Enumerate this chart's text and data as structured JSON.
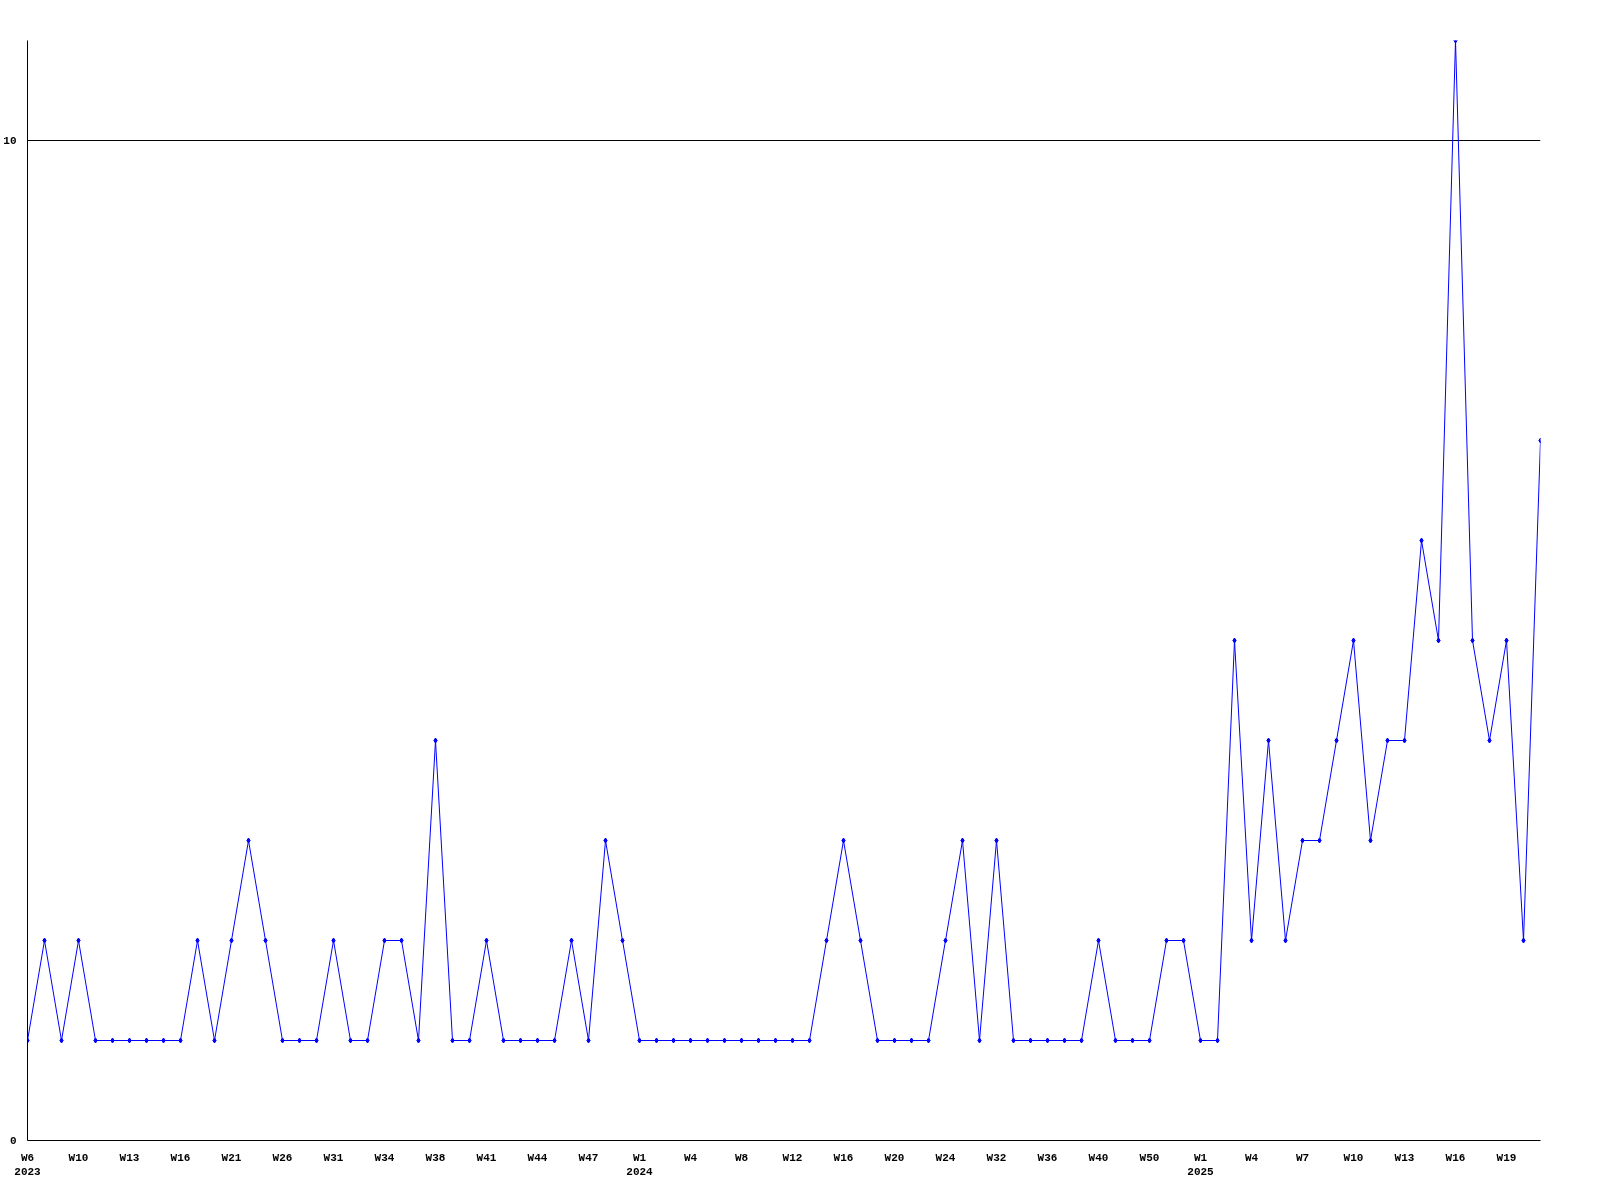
{
  "chart_data": {
    "type": "line",
    "categories": [
      "W6\n2023",
      null,
      null,
      "W10",
      null,
      null,
      "W13",
      null,
      null,
      "W16",
      null,
      null,
      "W21",
      null,
      null,
      "W26",
      null,
      null,
      "W31",
      null,
      null,
      "W34",
      null,
      null,
      "W38",
      null,
      null,
      "W41",
      null,
      null,
      "W44",
      null,
      null,
      "W47",
      null,
      null,
      "W1\n2024",
      null,
      null,
      "W4",
      null,
      null,
      "W8",
      null,
      null,
      "W12",
      null,
      null,
      "W16",
      null,
      null,
      "W20",
      null,
      null,
      "W24",
      null,
      null,
      "W32",
      null,
      null,
      "W36",
      null,
      null,
      "W40",
      null,
      null,
      "W50",
      null,
      null,
      "W1\n2025",
      null,
      null,
      "W4",
      null,
      null,
      "W7",
      null,
      null,
      "W10",
      null,
      null,
      "W13",
      null,
      null,
      "W16",
      null,
      null,
      "W19",
      null,
      null
    ],
    "series": [
      {
        "color": "#0000ff",
        "values": [
          1,
          2,
          1,
          2,
          1,
          1,
          1,
          1,
          1,
          1,
          2,
          1,
          2,
          3,
          2,
          1,
          1,
          1,
          2,
          1,
          1,
          2,
          2,
          1,
          4,
          1,
          1,
          2,
          1,
          1,
          1,
          1,
          2,
          1,
          3,
          2,
          1,
          1,
          1,
          1,
          1,
          1,
          1,
          1,
          1,
          1,
          1,
          2,
          3,
          2,
          1,
          1,
          1,
          1,
          2,
          3,
          1,
          3,
          1,
          1,
          1,
          1,
          1,
          2,
          1,
          1,
          1,
          2,
          2,
          1,
          1,
          5,
          2,
          4,
          2,
          3,
          3,
          4,
          5,
          3,
          4,
          4,
          6,
          5,
          11,
          5,
          4,
          5,
          2,
          7
        ]
      }
    ],
    "ylim": [
      0,
      11
    ],
    "yticks": [
      0,
      10
    ],
    "grid": "y",
    "marker": "diamond",
    "line_style": "solid"
  }
}
